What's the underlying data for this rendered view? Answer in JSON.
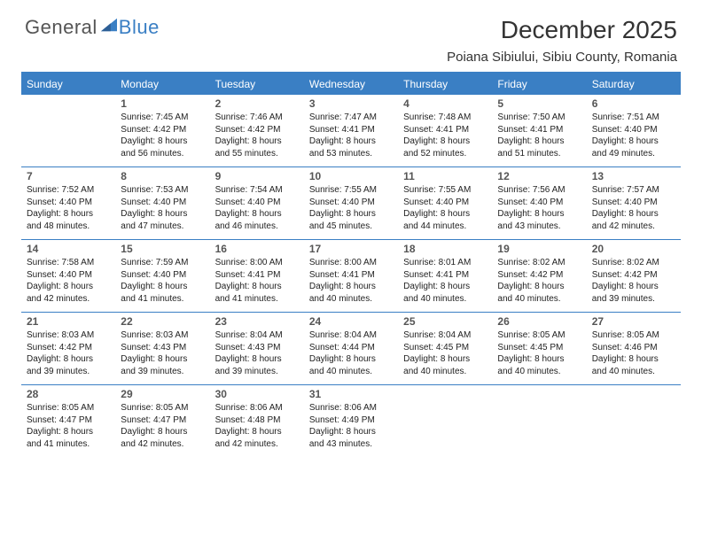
{
  "logo": {
    "general": "General",
    "blue": "Blue"
  },
  "title": "December 2025",
  "location": "Poiana Sibiului, Sibiu County, Romania",
  "colors": {
    "accent": "#3a7fc4",
    "text": "#333333",
    "body": "#222222",
    "bg": "#ffffff"
  },
  "dayNames": [
    "Sunday",
    "Monday",
    "Tuesday",
    "Wednesday",
    "Thursday",
    "Friday",
    "Saturday"
  ],
  "weeks": [
    [
      {
        "n": "",
        "sr": "",
        "ss": "",
        "d1": "",
        "d2": ""
      },
      {
        "n": "1",
        "sr": "Sunrise: 7:45 AM",
        "ss": "Sunset: 4:42 PM",
        "d1": "Daylight: 8 hours",
        "d2": "and 56 minutes."
      },
      {
        "n": "2",
        "sr": "Sunrise: 7:46 AM",
        "ss": "Sunset: 4:42 PM",
        "d1": "Daylight: 8 hours",
        "d2": "and 55 minutes."
      },
      {
        "n": "3",
        "sr": "Sunrise: 7:47 AM",
        "ss": "Sunset: 4:41 PM",
        "d1": "Daylight: 8 hours",
        "d2": "and 53 minutes."
      },
      {
        "n": "4",
        "sr": "Sunrise: 7:48 AM",
        "ss": "Sunset: 4:41 PM",
        "d1": "Daylight: 8 hours",
        "d2": "and 52 minutes."
      },
      {
        "n": "5",
        "sr": "Sunrise: 7:50 AM",
        "ss": "Sunset: 4:41 PM",
        "d1": "Daylight: 8 hours",
        "d2": "and 51 minutes."
      },
      {
        "n": "6",
        "sr": "Sunrise: 7:51 AM",
        "ss": "Sunset: 4:40 PM",
        "d1": "Daylight: 8 hours",
        "d2": "and 49 minutes."
      }
    ],
    [
      {
        "n": "7",
        "sr": "Sunrise: 7:52 AM",
        "ss": "Sunset: 4:40 PM",
        "d1": "Daylight: 8 hours",
        "d2": "and 48 minutes."
      },
      {
        "n": "8",
        "sr": "Sunrise: 7:53 AM",
        "ss": "Sunset: 4:40 PM",
        "d1": "Daylight: 8 hours",
        "d2": "and 47 minutes."
      },
      {
        "n": "9",
        "sr": "Sunrise: 7:54 AM",
        "ss": "Sunset: 4:40 PM",
        "d1": "Daylight: 8 hours",
        "d2": "and 46 minutes."
      },
      {
        "n": "10",
        "sr": "Sunrise: 7:55 AM",
        "ss": "Sunset: 4:40 PM",
        "d1": "Daylight: 8 hours",
        "d2": "and 45 minutes."
      },
      {
        "n": "11",
        "sr": "Sunrise: 7:55 AM",
        "ss": "Sunset: 4:40 PM",
        "d1": "Daylight: 8 hours",
        "d2": "and 44 minutes."
      },
      {
        "n": "12",
        "sr": "Sunrise: 7:56 AM",
        "ss": "Sunset: 4:40 PM",
        "d1": "Daylight: 8 hours",
        "d2": "and 43 minutes."
      },
      {
        "n": "13",
        "sr": "Sunrise: 7:57 AM",
        "ss": "Sunset: 4:40 PM",
        "d1": "Daylight: 8 hours",
        "d2": "and 42 minutes."
      }
    ],
    [
      {
        "n": "14",
        "sr": "Sunrise: 7:58 AM",
        "ss": "Sunset: 4:40 PM",
        "d1": "Daylight: 8 hours",
        "d2": "and 42 minutes."
      },
      {
        "n": "15",
        "sr": "Sunrise: 7:59 AM",
        "ss": "Sunset: 4:40 PM",
        "d1": "Daylight: 8 hours",
        "d2": "and 41 minutes."
      },
      {
        "n": "16",
        "sr": "Sunrise: 8:00 AM",
        "ss": "Sunset: 4:41 PM",
        "d1": "Daylight: 8 hours",
        "d2": "and 41 minutes."
      },
      {
        "n": "17",
        "sr": "Sunrise: 8:00 AM",
        "ss": "Sunset: 4:41 PM",
        "d1": "Daylight: 8 hours",
        "d2": "and 40 minutes."
      },
      {
        "n": "18",
        "sr": "Sunrise: 8:01 AM",
        "ss": "Sunset: 4:41 PM",
        "d1": "Daylight: 8 hours",
        "d2": "and 40 minutes."
      },
      {
        "n": "19",
        "sr": "Sunrise: 8:02 AM",
        "ss": "Sunset: 4:42 PM",
        "d1": "Daylight: 8 hours",
        "d2": "and 40 minutes."
      },
      {
        "n": "20",
        "sr": "Sunrise: 8:02 AM",
        "ss": "Sunset: 4:42 PM",
        "d1": "Daylight: 8 hours",
        "d2": "and 39 minutes."
      }
    ],
    [
      {
        "n": "21",
        "sr": "Sunrise: 8:03 AM",
        "ss": "Sunset: 4:42 PM",
        "d1": "Daylight: 8 hours",
        "d2": "and 39 minutes."
      },
      {
        "n": "22",
        "sr": "Sunrise: 8:03 AM",
        "ss": "Sunset: 4:43 PM",
        "d1": "Daylight: 8 hours",
        "d2": "and 39 minutes."
      },
      {
        "n": "23",
        "sr": "Sunrise: 8:04 AM",
        "ss": "Sunset: 4:43 PM",
        "d1": "Daylight: 8 hours",
        "d2": "and 39 minutes."
      },
      {
        "n": "24",
        "sr": "Sunrise: 8:04 AM",
        "ss": "Sunset: 4:44 PM",
        "d1": "Daylight: 8 hours",
        "d2": "and 40 minutes."
      },
      {
        "n": "25",
        "sr": "Sunrise: 8:04 AM",
        "ss": "Sunset: 4:45 PM",
        "d1": "Daylight: 8 hours",
        "d2": "and 40 minutes."
      },
      {
        "n": "26",
        "sr": "Sunrise: 8:05 AM",
        "ss": "Sunset: 4:45 PM",
        "d1": "Daylight: 8 hours",
        "d2": "and 40 minutes."
      },
      {
        "n": "27",
        "sr": "Sunrise: 8:05 AM",
        "ss": "Sunset: 4:46 PM",
        "d1": "Daylight: 8 hours",
        "d2": "and 40 minutes."
      }
    ],
    [
      {
        "n": "28",
        "sr": "Sunrise: 8:05 AM",
        "ss": "Sunset: 4:47 PM",
        "d1": "Daylight: 8 hours",
        "d2": "and 41 minutes."
      },
      {
        "n": "29",
        "sr": "Sunrise: 8:05 AM",
        "ss": "Sunset: 4:47 PM",
        "d1": "Daylight: 8 hours",
        "d2": "and 42 minutes."
      },
      {
        "n": "30",
        "sr": "Sunrise: 8:06 AM",
        "ss": "Sunset: 4:48 PM",
        "d1": "Daylight: 8 hours",
        "d2": "and 42 minutes."
      },
      {
        "n": "31",
        "sr": "Sunrise: 8:06 AM",
        "ss": "Sunset: 4:49 PM",
        "d1": "Daylight: 8 hours",
        "d2": "and 43 minutes."
      },
      {
        "n": "",
        "sr": "",
        "ss": "",
        "d1": "",
        "d2": ""
      },
      {
        "n": "",
        "sr": "",
        "ss": "",
        "d1": "",
        "d2": ""
      },
      {
        "n": "",
        "sr": "",
        "ss": "",
        "d1": "",
        "d2": ""
      }
    ]
  ]
}
